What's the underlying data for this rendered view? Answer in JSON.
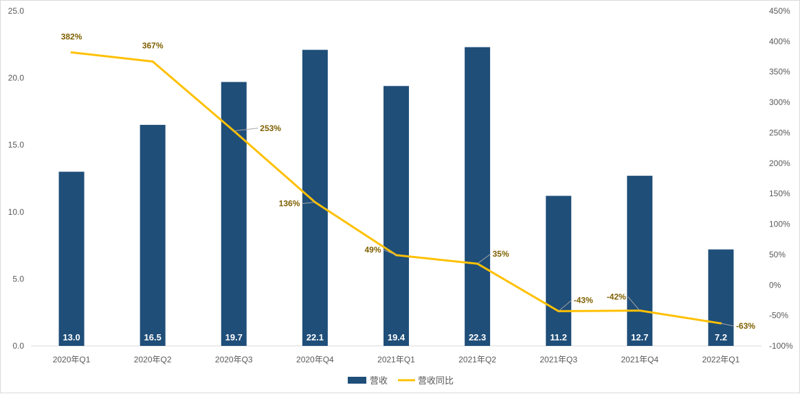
{
  "chart_data": {
    "type": "bar+line",
    "title": "",
    "categories": [
      "2020年Q1",
      "2020年Q2",
      "2020年Q3",
      "2020年Q4",
      "2021年Q1",
      "2021年Q2",
      "2021年Q3",
      "2021年Q4",
      "2022年Q1"
    ],
    "series": [
      {
        "name": "营收",
        "type": "bar",
        "axis": "left",
        "values": [
          13.0,
          16.5,
          19.7,
          22.1,
          19.4,
          22.3,
          11.2,
          12.7,
          7.2
        ],
        "labels": [
          "13.0",
          "16.5",
          "19.7",
          "22.1",
          "19.4",
          "22.3",
          "11.2",
          "12.7",
          "7.2"
        ],
        "color": "#1f4e79"
      },
      {
        "name": "营收同比",
        "type": "line",
        "axis": "right",
        "values": [
          382,
          367,
          253,
          136,
          49,
          35,
          -43,
          -42,
          -63
        ],
        "labels": [
          "382%",
          "367%",
          "253%",
          "136%",
          "49%",
          "35%",
          "-43%",
          "-42%",
          "-63%"
        ],
        "color": "#ffc000",
        "label_color": "#7f6000"
      }
    ],
    "y_left": {
      "min": 0,
      "max": 25,
      "ticks": [
        "0.0",
        "5.0",
        "10.0",
        "15.0",
        "20.0",
        "25.0"
      ]
    },
    "y_right": {
      "min": -100,
      "max": 450,
      "ticks": [
        "-100%",
        "-50%",
        "0%",
        "50%",
        "100%",
        "150%",
        "200%",
        "250%",
        "300%",
        "350%",
        "400%",
        "450%"
      ]
    },
    "legend": {
      "position": "bottom",
      "items": [
        "营收",
        "营收同比"
      ]
    },
    "grid": false
  }
}
